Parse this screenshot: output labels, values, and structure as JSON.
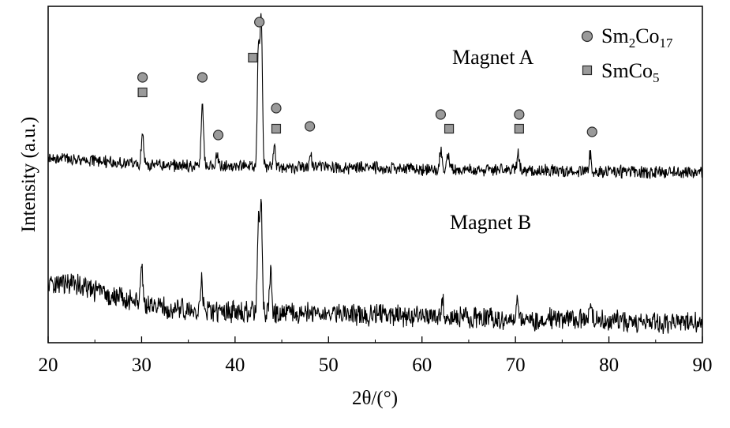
{
  "chart_data": {
    "type": "line",
    "xlabel": "2θ/(°)",
    "ylabel": "Intensity (a.u.)",
    "xlim": [
      20,
      90
    ],
    "xticks": [
      "20",
      "30",
      "40",
      "50",
      "60",
      "70",
      "80",
      "90"
    ],
    "yticks": false,
    "grid": false,
    "series": [
      {
        "name": "Magnet A",
        "peaks": [
          {
            "x": 30.1,
            "height": 0.2
          },
          {
            "x": 36.5,
            "height": 0.42
          },
          {
            "x": 38.1,
            "height": 0.08
          },
          {
            "x": 42.5,
            "height": 0.75
          },
          {
            "x": 42.8,
            "height": 0.95
          },
          {
            "x": 44.2,
            "height": 0.12
          },
          {
            "x": 48.1,
            "height": 0.09
          },
          {
            "x": 62.0,
            "height": 0.12
          },
          {
            "x": 62.8,
            "height": 0.1
          },
          {
            "x": 70.3,
            "height": 0.11
          },
          {
            "x": 78.0,
            "height": 0.11
          }
        ]
      },
      {
        "name": "Magnet B",
        "peaks": [
          {
            "x": 30.0,
            "height": 0.35
          },
          {
            "x": 36.4,
            "height": 0.25
          },
          {
            "x": 42.5,
            "height": 0.8
          },
          {
            "x": 42.8,
            "height": 0.9
          },
          {
            "x": 43.8,
            "height": 0.35
          },
          {
            "x": 62.2,
            "height": 0.18
          },
          {
            "x": 70.2,
            "height": 0.18
          },
          {
            "x": 78.0,
            "height": 0.2
          }
        ]
      }
    ],
    "legend": {
      "position": "top-right",
      "items": [
        {
          "marker": "circle",
          "label": "Sm",
          "sub1": "2",
          "label2": "Co",
          "sub2": "17"
        },
        {
          "marker": "square",
          "label": "SmCo",
          "sub1": "5"
        }
      ]
    },
    "markers": [
      {
        "series": "Magnet A",
        "x": 30.1,
        "phase": "circle",
        "level": 2
      },
      {
        "series": "Magnet A",
        "x": 30.1,
        "phase": "square",
        "level": 1
      },
      {
        "series": "Magnet A",
        "x": 36.5,
        "phase": "circle",
        "level": 2
      },
      {
        "series": "Magnet A",
        "x": 38.2,
        "phase": "circle",
        "level": 0
      },
      {
        "series": "Magnet A",
        "x": 42.6,
        "phase": "circle",
        "level": 4
      },
      {
        "series": "Magnet A",
        "x": 41.9,
        "phase": "square",
        "level": 3
      },
      {
        "series": "Magnet A",
        "x": 44.4,
        "phase": "circle",
        "level": 1
      },
      {
        "series": "Magnet A",
        "x": 44.4,
        "phase": "square",
        "level": 0
      },
      {
        "series": "Magnet A",
        "x": 48.0,
        "phase": "circle",
        "level": 0
      },
      {
        "series": "Magnet A",
        "x": 62.0,
        "phase": "circle",
        "level": 1
      },
      {
        "series": "Magnet A",
        "x": 62.9,
        "phase": "square",
        "level": 0
      },
      {
        "series": "Magnet A",
        "x": 70.4,
        "phase": "circle",
        "level": 1
      },
      {
        "series": "Magnet A",
        "x": 70.4,
        "phase": "square",
        "level": 0
      },
      {
        "series": "Magnet A",
        "x": 78.2,
        "phase": "circle",
        "level": 0
      }
    ],
    "colors": {
      "line": "#000000",
      "marker_fill": "#9a9a9a",
      "marker_stroke": "#2a2a2a"
    }
  }
}
